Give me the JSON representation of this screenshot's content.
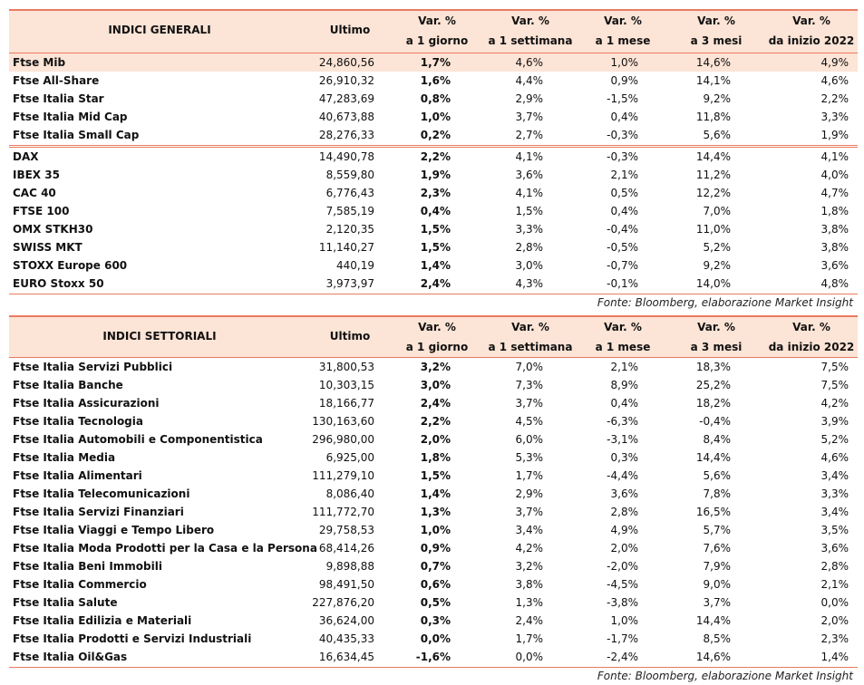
{
  "tables": [
    {
      "header": [
        [
          "INDICI GENERALI"
        ],
        [
          "Ultimo"
        ],
        [
          "Var. %",
          "a 1 giorno"
        ],
        [
          "Var. %",
          "a 1 settimana"
        ],
        [
          "Var. %",
          "a 1 mese"
        ],
        [
          "Var. %",
          "a 3 mesi"
        ],
        [
          "Var. %",
          "da inizio 2022"
        ]
      ],
      "row_groups": [
        [
          [
            "Ftse Mib",
            "24,860,56",
            "1,7%",
            "4,6%",
            "1,0%",
            "14,6%",
            "4,9%"
          ],
          [
            "Ftse All-Share",
            "26,910,32",
            "1,6%",
            "4,4%",
            "0,9%",
            "14,1%",
            "4,6%"
          ],
          [
            "Ftse Italia Star",
            "47,283,69",
            "0,8%",
            "2,9%",
            "-1,5%",
            "9,2%",
            "2,2%"
          ],
          [
            "Ftse Italia Mid Cap",
            "40,673,88",
            "1,0%",
            "3,7%",
            "0,4%",
            "11,8%",
            "3,3%"
          ],
          [
            "Ftse Italia Small Cap",
            "28,276,33",
            "0,2%",
            "2,7%",
            "-0,3%",
            "5,6%",
            "1,9%"
          ]
        ],
        [
          [
            "DAX",
            "14,490,78",
            "2,2%",
            "4,1%",
            "-0,3%",
            "14,4%",
            "4,1%"
          ],
          [
            "IBEX 35",
            "8,559,80",
            "1,9%",
            "3,6%",
            "2,1%",
            "11,2%",
            "4,0%"
          ],
          [
            "CAC 40",
            "6,776,43",
            "2,3%",
            "4,1%",
            "0,5%",
            "12,2%",
            "4,7%"
          ],
          [
            "FTSE 100",
            "7,585,19",
            "0,4%",
            "1,5%",
            "0,4%",
            "7,0%",
            "1,8%"
          ],
          [
            "OMX STKH30",
            "2,120,35",
            "1,5%",
            "3,3%",
            "-0,4%",
            "11,0%",
            "3,8%"
          ],
          [
            "SWISS MKT",
            "11,140,27",
            "1,5%",
            "2,8%",
            "-0,5%",
            "5,2%",
            "3,8%"
          ],
          [
            "STOXX Europe 600",
            "440,19",
            "1,4%",
            "3,0%",
            "-0,7%",
            "9,2%",
            "3,6%"
          ],
          [
            "EURO Stoxx 50",
            "3,973,97",
            "2,4%",
            "4,3%",
            "-0,1%",
            "14,0%",
            "4,8%"
          ]
        ]
      ],
      "source": "Fonte: Bloomberg, elaborazione Market Insight"
    },
    {
      "header": [
        [
          "INDICI SETTORIALI"
        ],
        [
          "Ultimo"
        ],
        [
          "Var. %",
          "a 1 giorno"
        ],
        [
          "Var. %",
          "a 1 settimana"
        ],
        [
          "Var. %",
          "a 1 mese"
        ],
        [
          "Var. %",
          "a 3 mesi"
        ],
        [
          "Var. %",
          "da inizio 2022"
        ]
      ],
      "row_groups": [
        [
          [
            "Ftse Italia Servizi Pubblici",
            "31,800,53",
            "3,2%",
            "7,0%",
            "2,1%",
            "18,3%",
            "7,5%"
          ],
          [
            "Ftse Italia Banche",
            "10,303,15",
            "3,0%",
            "7,3%",
            "8,9%",
            "25,2%",
            "7,5%"
          ],
          [
            "Ftse Italia Assicurazioni",
            "18,166,77",
            "2,4%",
            "3,7%",
            "0,4%",
            "18,2%",
            "4,2%"
          ],
          [
            "Ftse Italia Tecnologia",
            "130,163,60",
            "2,2%",
            "4,5%",
            "-6,3%",
            "-0,4%",
            "3,9%"
          ],
          [
            "Ftse Italia Automobili e Componentistica",
            "296,980,00",
            "2,0%",
            "6,0%",
            "-3,1%",
            "8,4%",
            "5,2%"
          ],
          [
            "Ftse Italia Media",
            "6,925,00",
            "1,8%",
            "5,3%",
            "0,3%",
            "14,4%",
            "4,6%"
          ],
          [
            "Ftse Italia Alimentari",
            "111,279,10",
            "1,5%",
            "1,7%",
            "-4,4%",
            "5,6%",
            "3,4%"
          ],
          [
            "Ftse Italia Telecomunicazioni",
            "8,086,40",
            "1,4%",
            "2,9%",
            "3,6%",
            "7,8%",
            "3,3%"
          ],
          [
            "Ftse Italia Servizi Finanziari",
            "111,772,70",
            "1,3%",
            "3,7%",
            "2,8%",
            "16,5%",
            "3,4%"
          ],
          [
            "Ftse Italia Viaggi e Tempo Libero",
            "29,758,53",
            "1,0%",
            "3,4%",
            "4,9%",
            "5,7%",
            "3,5%"
          ],
          [
            "Ftse Italia Moda Prodotti per la Casa e la Persona",
            "68,414,26",
            "0,9%",
            "4,2%",
            "2,0%",
            "7,6%",
            "3,6%"
          ],
          [
            "Ftse Italia Beni Immobili",
            "9,898,88",
            "0,7%",
            "3,2%",
            "-2,0%",
            "7,9%",
            "2,8%"
          ],
          [
            "Ftse Italia Commercio",
            "98,491,50",
            "0,6%",
            "3,8%",
            "-4,5%",
            "9,0%",
            "2,1%"
          ],
          [
            "Ftse Italia Salute",
            "227,876,20",
            "0,5%",
            "1,3%",
            "-3,8%",
            "3,7%",
            "0,0%"
          ],
          [
            "Ftse Italia Edilizia e Materiali",
            "36,624,00",
            "0,3%",
            "2,4%",
            "1,0%",
            "14,4%",
            "2,0%"
          ],
          [
            "Ftse Italia Prodotti e Servizi Industriali",
            "40,435,33",
            "0,0%",
            "1,7%",
            "-1,7%",
            "8,5%",
            "2,3%"
          ],
          [
            "Ftse Italia Oil&Gas",
            "16,634,45",
            "-1,6%",
            "0,0%",
            "-2,4%",
            "14,6%",
            "1,4%"
          ]
        ]
      ],
      "source": "Fonte: Bloomberg, elaborazione Market Insight"
    }
  ]
}
